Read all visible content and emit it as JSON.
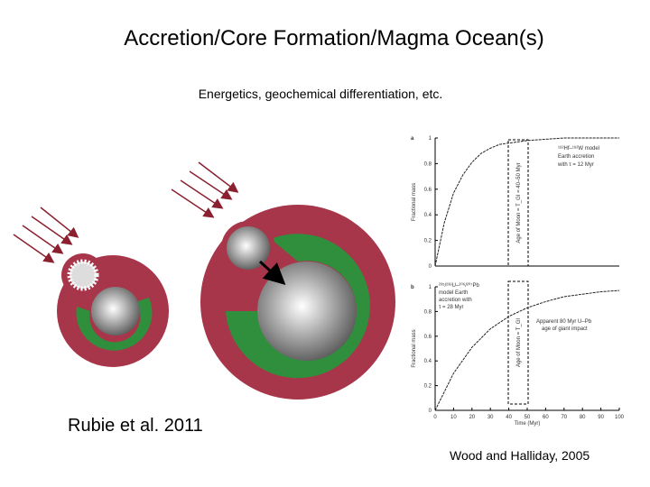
{
  "slide": {
    "title": "Accretion/Core Formation/Magma Ocean(s)",
    "subtitle": "Energetics, geochemical differentiation, etc.",
    "left_caption": "Rubie et al. 2011",
    "right_caption": "Wood and Halliday, 2005"
  },
  "chart_data": [
    {
      "type": "line",
      "panel": "a",
      "y_label": "Fractional mass",
      "annotations": [
        "¹⁸²Hf–¹⁸²W model",
        "Earth accretion",
        "with τ = 12 Myr",
        "Age of Moon = T_GI = 40–50 Myr"
      ],
      "x": [
        0,
        5,
        10,
        15,
        20,
        25,
        30,
        35,
        40,
        50,
        60,
        70,
        80,
        90,
        100
      ],
      "series": [
        {
          "color": "#222222",
          "values": [
            0,
            0.34,
            0.57,
            0.71,
            0.81,
            0.88,
            0.92,
            0.95,
            0.96,
            0.98,
            0.99,
            1,
            1,
            1,
            1
          ]
        }
      ],
      "xlim": [
        0,
        100
      ],
      "ylim": [
        0,
        1
      ],
      "yticks": [
        0,
        0.2,
        0.4,
        0.6,
        0.8,
        1
      ]
    },
    {
      "type": "line",
      "panel": "b",
      "y_label": "Fractional mass",
      "x_label": "Time (Myr)",
      "annotations": [
        "²³⁵/²³⁸U–²⁰⁶/²⁰⁷Pb",
        "model Earth",
        "accretion with",
        "τ = 28 Myr",
        "Apparent 80 Myr U–Pb",
        "age of giant impact",
        "Age of Moon = T_GI"
      ],
      "x": [
        0,
        10,
        20,
        30,
        40,
        50,
        60,
        70,
        80,
        90,
        100
      ],
      "series": [
        {
          "color": "#222222",
          "values": [
            0,
            0.3,
            0.51,
            0.66,
            0.76,
            0.83,
            0.88,
            0.92,
            0.94,
            0.96,
            0.97
          ]
        }
      ],
      "xlim": [
        0,
        100
      ],
      "ylim": [
        0,
        1
      ],
      "xticks": [
        0,
        10,
        20,
        30,
        40,
        50,
        60,
        70,
        80,
        90,
        100
      ],
      "yticks": [
        0,
        0.2,
        0.4,
        0.6,
        0.8,
        1
      ]
    }
  ]
}
